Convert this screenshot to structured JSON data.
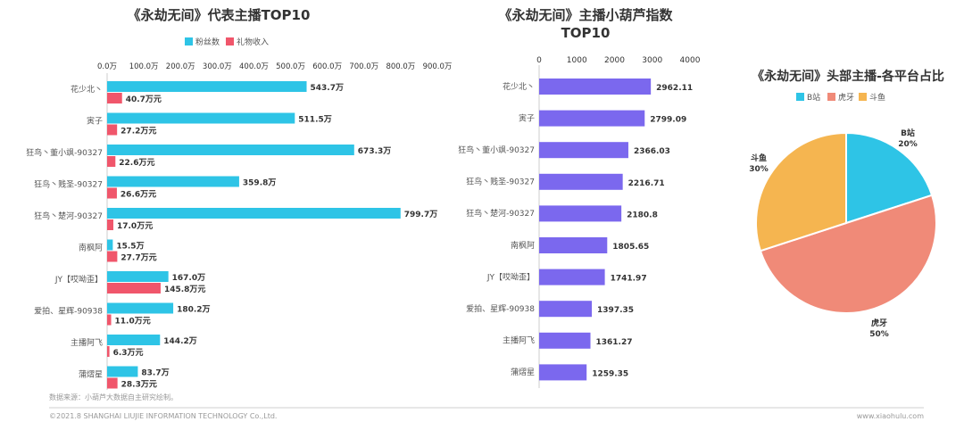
{
  "chart_data": [
    {
      "type": "bar",
      "orientation": "horizontal",
      "title": "《永劫无间》代表主播TOP10",
      "categories": [
        "花少北丶",
        "寅子",
        "狂鸟丶董小飒-90327",
        "狂鸟丶贱圣-90327",
        "狂鸟丶楚河-90327",
        "南枫阿",
        "JY【哎呦歪】",
        "爱拍、星辉-90938",
        "主播阿飞",
        "蒲熠星"
      ],
      "series": [
        {
          "name": "粉丝数",
          "color": "#2ec4e6",
          "values": [
            543.7,
            511.5,
            673.3,
            359.8,
            799.7,
            15.5,
            167.0,
            180.2,
            144.2,
            83.7
          ],
          "labels": [
            "543.7万",
            "511.5万",
            "673.3万",
            "359.8万",
            "799.7万",
            "15.5万",
            "167.0万",
            "180.2万",
            "144.2万",
            "83.7万"
          ]
        },
        {
          "name": "礼物收入",
          "color": "#f0566b",
          "values": [
            40.7,
            27.2,
            22.6,
            26.6,
            17.0,
            27.7,
            145.8,
            11.0,
            6.3,
            28.3
          ],
          "labels": [
            "40.7万元",
            "27.2万元",
            "22.6万元",
            "26.6万元",
            "17.0万元",
            "27.7万元",
            "145.8万元",
            "11.0万元",
            "6.3万元",
            "28.3万元"
          ]
        }
      ],
      "ticks": [
        "0.0万",
        "100.0万",
        "200.0万",
        "300.0万",
        "400.0万",
        "500.0万",
        "600.0万",
        "700.0万",
        "800.0万",
        "900.0万"
      ],
      "xlim": [
        0,
        900
      ],
      "legend": "top"
    },
    {
      "type": "bar",
      "orientation": "horizontal",
      "title": "《永劫无间》主播小葫芦指数",
      "title_line2": "TOP10",
      "categories": [
        "花少北丶",
        "寅子",
        "狂鸟丶董小飒-90327",
        "狂鸟丶贱圣-90327",
        "狂鸟丶楚河-90327",
        "南枫阿",
        "JY【哎呦歪】",
        "爱拍、星辉-90938",
        "主播阿飞",
        "蒲熠星"
      ],
      "series": [
        {
          "color": "#7b68ee",
          "values": [
            2962.11,
            2799.09,
            2366.03,
            2216.71,
            2180.8,
            1805.65,
            1741.97,
            1397.35,
            1361.27,
            1259.35
          ],
          "labels": [
            "2962.11",
            "2799.09",
            "2366.03",
            "2216.71",
            "2180.8",
            "1805.65",
            "1741.97",
            "1397.35",
            "1361.27",
            "1259.35"
          ]
        }
      ],
      "ticks": [
        "0",
        "1000",
        "2000",
        "3000",
        "4000"
      ],
      "xlim": [
        0,
        4000
      ]
    },
    {
      "type": "pie",
      "title": "《永劫无间》头部主播-各平台占比",
      "slices": [
        {
          "name": "B站",
          "value": 20,
          "label": "20%",
          "color": "#2ec4e6"
        },
        {
          "name": "虎牙",
          "value": 50,
          "label": "50%",
          "color": "#f08a78"
        },
        {
          "name": "斗鱼",
          "value": 30,
          "label": "30%",
          "color": "#f5b550"
        }
      ],
      "legend": "top"
    }
  ],
  "footer": {
    "source": "数据来源：小葫芦大数据自主研究绘制。",
    "copyright": "©2021.8 SHANGHAI LIUJIE INFORMATION TECHNOLOGY Co.,Ltd.",
    "website": "www.xiaohulu.com"
  }
}
